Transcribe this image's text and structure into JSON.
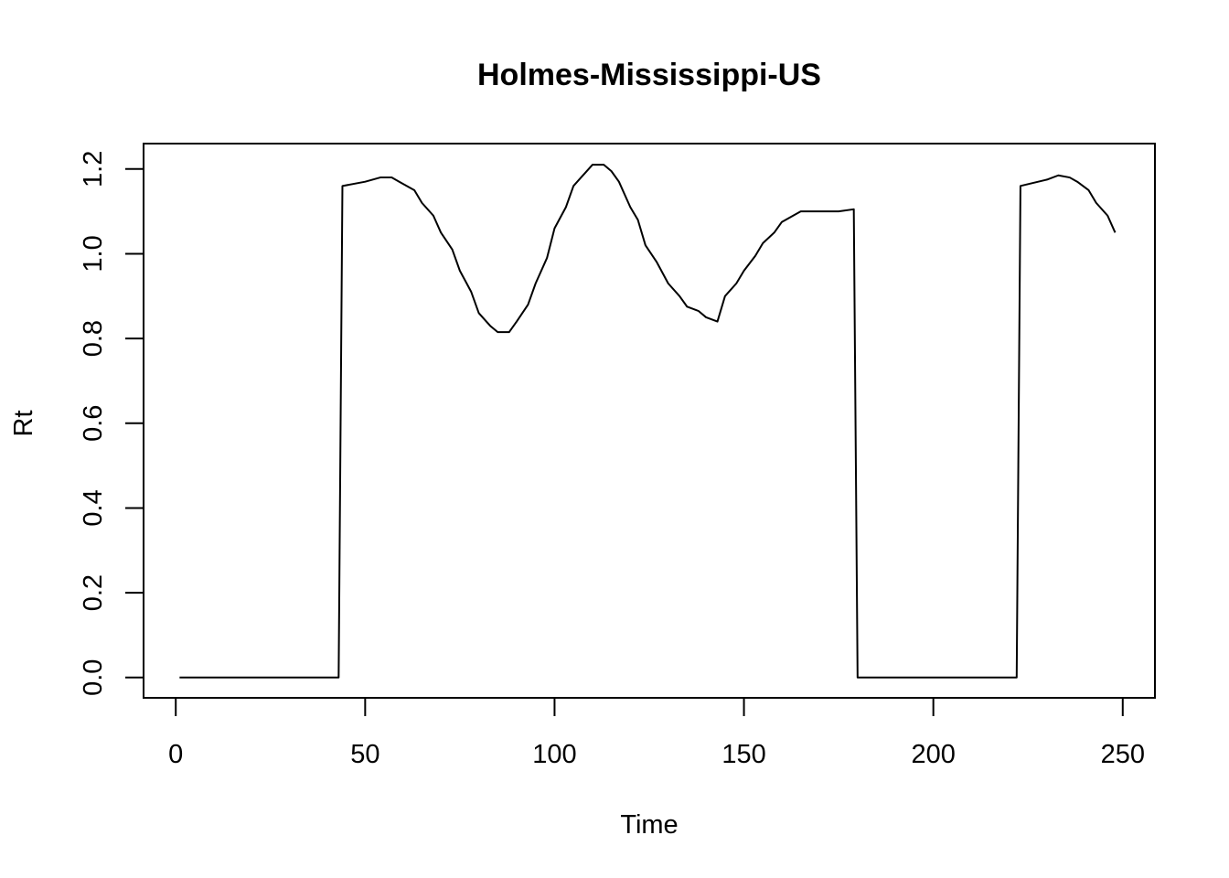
{
  "chart_data": {
    "type": "line",
    "title": "Holmes-Mississippi-US",
    "xlabel": "Time",
    "ylabel": "Rt",
    "xlim": [
      -8.5,
      258.5
    ],
    "ylim": [
      -0.048,
      1.26
    ],
    "x_ticks": [
      0,
      50,
      100,
      150,
      200,
      250
    ],
    "x_tick_labels": [
      "0",
      "50",
      "100",
      "150",
      "200",
      "250"
    ],
    "y_ticks": [
      0.0,
      0.2,
      0.4,
      0.6,
      0.8,
      1.0,
      1.2
    ],
    "y_tick_labels": [
      "0.0",
      "0.2",
      "0.4",
      "0.6",
      "0.8",
      "1.0",
      "1.2"
    ],
    "grid": false,
    "series": [
      {
        "color": "#000000",
        "points": [
          [
            1,
            0
          ],
          [
            43,
            0
          ],
          [
            44,
            1.16
          ],
          [
            50,
            1.17
          ],
          [
            54,
            1.18
          ],
          [
            57,
            1.18
          ],
          [
            59,
            1.17
          ],
          [
            63,
            1.15
          ],
          [
            65,
            1.12
          ],
          [
            68,
            1.09
          ],
          [
            70,
            1.05
          ],
          [
            73,
            1.01
          ],
          [
            75,
            0.96
          ],
          [
            78,
            0.91
          ],
          [
            80,
            0.86
          ],
          [
            83,
            0.83
          ],
          [
            85,
            0.815
          ],
          [
            88,
            0.815
          ],
          [
            90,
            0.84
          ],
          [
            93,
            0.88
          ],
          [
            95,
            0.93
          ],
          [
            98,
            0.99
          ],
          [
            100,
            1.06
          ],
          [
            103,
            1.11
          ],
          [
            105,
            1.16
          ],
          [
            108,
            1.19
          ],
          [
            110,
            1.21
          ],
          [
            113,
            1.21
          ],
          [
            115,
            1.195
          ],
          [
            117,
            1.17
          ],
          [
            120,
            1.11
          ],
          [
            122,
            1.08
          ],
          [
            124,
            1.02
          ],
          [
            127,
            0.98
          ],
          [
            130,
            0.93
          ],
          [
            133,
            0.9
          ],
          [
            135,
            0.875
          ],
          [
            138,
            0.865
          ],
          [
            140,
            0.85
          ],
          [
            143,
            0.84
          ],
          [
            145,
            0.9
          ],
          [
            148,
            0.93
          ],
          [
            150,
            0.96
          ],
          [
            153,
            0.995
          ],
          [
            155,
            1.025
          ],
          [
            158,
            1.05
          ],
          [
            160,
            1.075
          ],
          [
            163,
            1.09
          ],
          [
            165,
            1.1
          ],
          [
            170,
            1.1
          ],
          [
            175,
            1.1
          ],
          [
            179,
            1.105
          ],
          [
            180,
            0
          ],
          [
            222,
            0
          ],
          [
            223,
            1.16
          ],
          [
            230,
            1.175
          ],
          [
            233,
            1.185
          ],
          [
            236,
            1.18
          ],
          [
            238,
            1.17
          ],
          [
            241,
            1.15
          ],
          [
            243,
            1.12
          ],
          [
            246,
            1.09
          ],
          [
            248,
            1.05
          ]
        ]
      }
    ]
  }
}
